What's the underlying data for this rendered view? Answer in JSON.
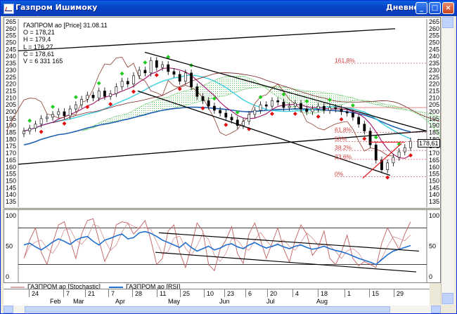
{
  "window": {
    "title": "Газпром Ишимоку",
    "period": "Дневной"
  },
  "info": {
    "header": "ГАЗПРОМ ао [Price] 31.08.11",
    "o": "O = 178,21",
    "h": "H = 179,4",
    "l": "L = 176,27",
    "c": "C = 178,61",
    "v": "V = 6 331 165"
  },
  "fib_labels": [
    "161,8%",
    "61,8%",
    "50%",
    "38,2%",
    "23,6%",
    "0%"
  ],
  "last_price": "178,61",
  "legend": {
    "stochastic": "ГАЗПРОМ ао [Stochastic]",
    "rsi": "ГАЗПРОМ ао [RSI]"
  },
  "chart_data": [
    {
      "type": "candlestick",
      "title": "ГАЗПРОМ ао [Price] 31.08.11",
      "ylim": [
        135,
        265
      ],
      "yticks": [
        265,
        260,
        255,
        250,
        245,
        240,
        235,
        230,
        225,
        220,
        215,
        210,
        205,
        200,
        195,
        190,
        185,
        180,
        175,
        170,
        165,
        160,
        155,
        150,
        145,
        140,
        135
      ],
      "x_day_labels": [
        "24",
        "7",
        "21",
        "7",
        "28",
        "11",
        "25",
        "10",
        "23",
        "6",
        "20",
        "4",
        "18",
        "1",
        "15",
        "29"
      ],
      "x_month_labels": [
        "Feb",
        "Mar",
        "Apr",
        "May",
        "Jun",
        "Jul",
        "Aug"
      ],
      "close_series": [
        186,
        188,
        191,
        195,
        196,
        198,
        200,
        197,
        202,
        205,
        209,
        212,
        210,
        215,
        211,
        213,
        218,
        222,
        220,
        226,
        230,
        228,
        237,
        232,
        234,
        229,
        227,
        222,
        228,
        218,
        211,
        208,
        204,
        201,
        199,
        196,
        194,
        190,
        193,
        198,
        201,
        205,
        204,
        208,
        207,
        203,
        204,
        206,
        202,
        200,
        202,
        204,
        201,
        203,
        202,
        200,
        199,
        196,
        191,
        186,
        176,
        165,
        158,
        163,
        167,
        171,
        174,
        178.6
      ],
      "fibonacci": {
        "levels_pct": [
          161.8,
          61.8,
          50,
          38.2,
          23.6,
          0
        ],
        "prices": [
          235,
          185,
          178.5,
          172,
          165.5,
          153
        ]
      }
    },
    {
      "type": "line",
      "series": [
        {
          "name": "ГАЗПРОМ ао [Stochastic]",
          "color": "#b05050"
        },
        {
          "name": "ГАЗПРОМ ао [RSI]",
          "color": "#1e6fd0"
        }
      ],
      "ylim": [
        0,
        100
      ],
      "yticks": [
        100,
        50,
        0
      ],
      "levels": [
        80,
        20
      ],
      "rsi": [
        52,
        55,
        49,
        44,
        50,
        57,
        62,
        58,
        53,
        60,
        64,
        66,
        58,
        52,
        60,
        63,
        67,
        70,
        62,
        64,
        72,
        74,
        71,
        66,
        60,
        56,
        52,
        48,
        56,
        48,
        42,
        46,
        50,
        44,
        47,
        52,
        54,
        49,
        46,
        52,
        56,
        51,
        47,
        50,
        53,
        49,
        46,
        50,
        52,
        48,
        45,
        47,
        50,
        46,
        43,
        41,
        38,
        34,
        30,
        27,
        24,
        20,
        28,
        36,
        42,
        45,
        48,
        51
      ],
      "stochastic": [
        30,
        60,
        80,
        40,
        20,
        55,
        85,
        90,
        60,
        30,
        70,
        92,
        95,
        60,
        25,
        45,
        85,
        90,
        88,
        70,
        80,
        92,
        60,
        20,
        30,
        75,
        85,
        40,
        15,
        50,
        88,
        75,
        20,
        10,
        45,
        60,
        82,
        38,
        22,
        70,
        88,
        60,
        30,
        55,
        80,
        46,
        24,
        60,
        85,
        70,
        35,
        48,
        75,
        30,
        20,
        40,
        68,
        30,
        18,
        25,
        20,
        15,
        55,
        80,
        62,
        45,
        70,
        90
      ]
    }
  ]
}
